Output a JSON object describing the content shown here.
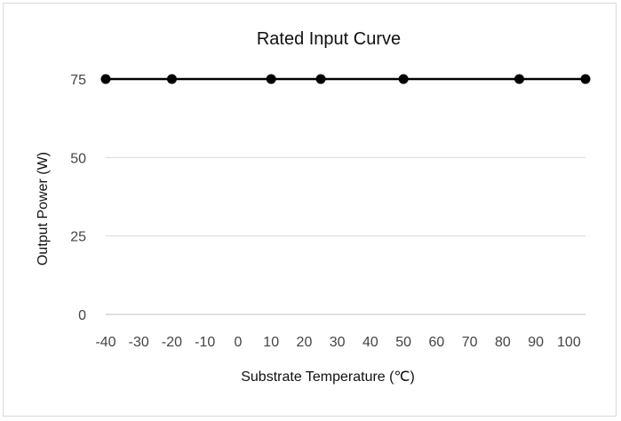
{
  "chart_data": {
    "type": "line",
    "title": "Rated Input Curve",
    "xlabel": "Substrate Temperature (℃)",
    "ylabel": "Output Power (W)",
    "xlim": [
      -40,
      105
    ],
    "ylim": [
      0,
      75
    ],
    "x_ticks": [
      "-40",
      "-30",
      "-20",
      "-10",
      "0",
      "10",
      "20",
      "30",
      "40",
      "50",
      "60",
      "70",
      "80",
      "90",
      "100"
    ],
    "y_ticks": [
      "0",
      "25",
      "50",
      "75"
    ],
    "grid": true,
    "legend": "none",
    "series": [
      {
        "x": [
          -40,
          -20,
          10,
          25,
          50,
          85,
          105
        ],
        "y": [
          75,
          75,
          75,
          75,
          75,
          75,
          75
        ],
        "color": "#000000"
      }
    ]
  }
}
